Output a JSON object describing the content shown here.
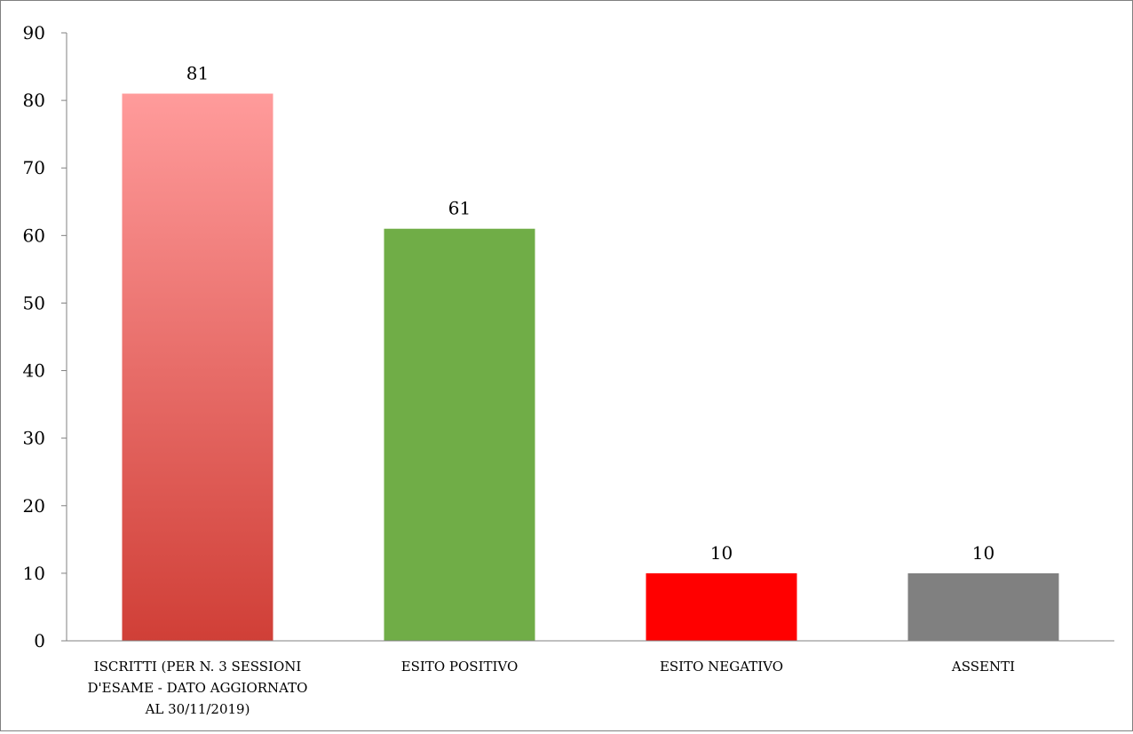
{
  "chart_data": {
    "type": "bar",
    "categories": [
      [
        "ISCRITTI (PER N. 3 SESSIONI",
        "D'ESAME - DATO AGGIORNATO",
        "AL 30/11/2019)"
      ],
      [
        "ESITO POSITIVO"
      ],
      [
        "ESITO NEGATIVO"
      ],
      [
        "ASSENTI"
      ]
    ],
    "values": [
      81,
      61,
      10,
      10
    ],
    "data_labels": [
      "81",
      "61",
      "10",
      "10"
    ],
    "colors": [
      "gradient-red",
      "#70ad47",
      "#ff0000",
      "#808080"
    ],
    "gradient": {
      "top": "#ff9b9b",
      "bottom": "#d03f37"
    },
    "ylim": [
      0,
      90
    ],
    "yticks": [
      0,
      10,
      20,
      30,
      40,
      50,
      60,
      70,
      80,
      90
    ],
    "title": "",
    "xlabel": "",
    "ylabel": "",
    "grid": false,
    "legend": "none"
  }
}
